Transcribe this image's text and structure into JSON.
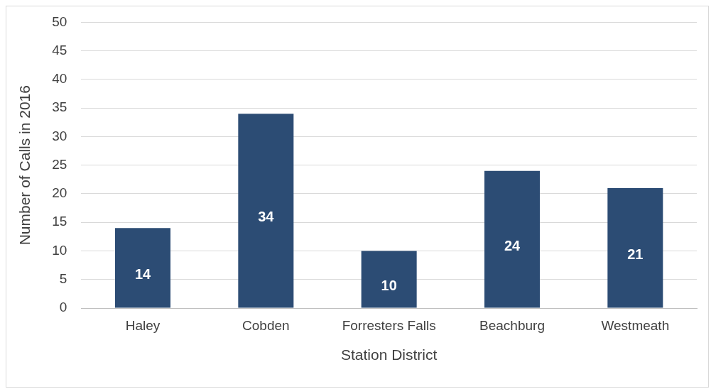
{
  "chart_data": {
    "type": "bar",
    "xlabel": "Station District",
    "ylabel": "Number of Calls in 2016",
    "categories": [
      "Haley",
      "Cobden",
      "Forresters Falls",
      "Beachburg",
      "Westmeath"
    ],
    "values": [
      14,
      34,
      10,
      24,
      21
    ],
    "color": "#2c4c74",
    "ylim": [
      0,
      50
    ],
    "yticks": [
      0,
      5,
      10,
      15,
      20,
      25,
      30,
      35,
      40,
      45,
      50
    ],
    "grid": "y",
    "data_labels": true,
    "legend": false
  }
}
